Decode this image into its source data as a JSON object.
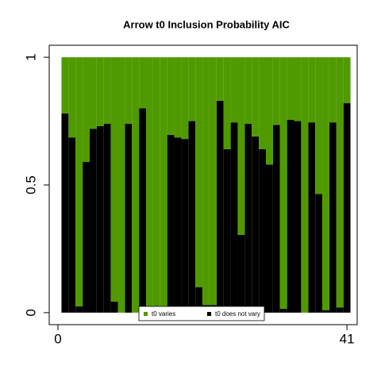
{
  "chart_data": {
    "type": "stacked_bar",
    "title": "Arrow t0 Inclusion Probability AIC",
    "x": [
      1,
      2,
      3,
      4,
      5,
      6,
      7,
      8,
      9,
      10,
      11,
      12,
      13,
      14,
      15,
      16,
      17,
      18,
      19,
      20,
      21,
      22,
      23,
      24,
      25,
      26,
      27,
      28,
      29,
      30,
      31,
      32,
      33,
      34,
      35,
      36,
      37,
      38,
      39,
      40,
      41
    ],
    "series": [
      {
        "name": "t0 varies",
        "color": "#4f9a00",
        "values": [
          0.22,
          0.314,
          0.975,
          0.41,
          0.28,
          0.27,
          0.26,
          0.957,
          1,
          0.26,
          1,
          0.2,
          1,
          1,
          1,
          0.304,
          0.314,
          0.32,
          0.25,
          0.9,
          0.97,
          0.97,
          0.17,
          0.36,
          0.255,
          0.695,
          0.26,
          0.31,
          0.36,
          0.42,
          0.265,
          0.985,
          0.245,
          0.25,
          1,
          0.255,
          0.535,
          0.99,
          0.255,
          0.98,
          0.18
        ]
      },
      {
        "name": "t0 does not vary",
        "color": "#000000",
        "values": [
          0.78,
          0.686,
          0.025,
          0.59,
          0.72,
          0.73,
          0.74,
          0.043,
          0,
          0.74,
          0,
          0.8,
          0,
          0,
          0,
          0.696,
          0.686,
          0.68,
          0.75,
          0.1,
          0.03,
          0.03,
          0.83,
          0.64,
          0.745,
          0.305,
          0.74,
          0.69,
          0.64,
          0.58,
          0.735,
          0.015,
          0.755,
          0.75,
          0,
          0.745,
          0.465,
          0.01,
          0.745,
          0.02,
          0.82
        ]
      }
    ],
    "xlim": [
      -1.24,
      42.45
    ],
    "xticks": [
      0,
      41
    ],
    "ylim": [
      -0.047,
      1.047
    ],
    "yticks": [
      0,
      0.5,
      1
    ],
    "legend": "bottom"
  }
}
